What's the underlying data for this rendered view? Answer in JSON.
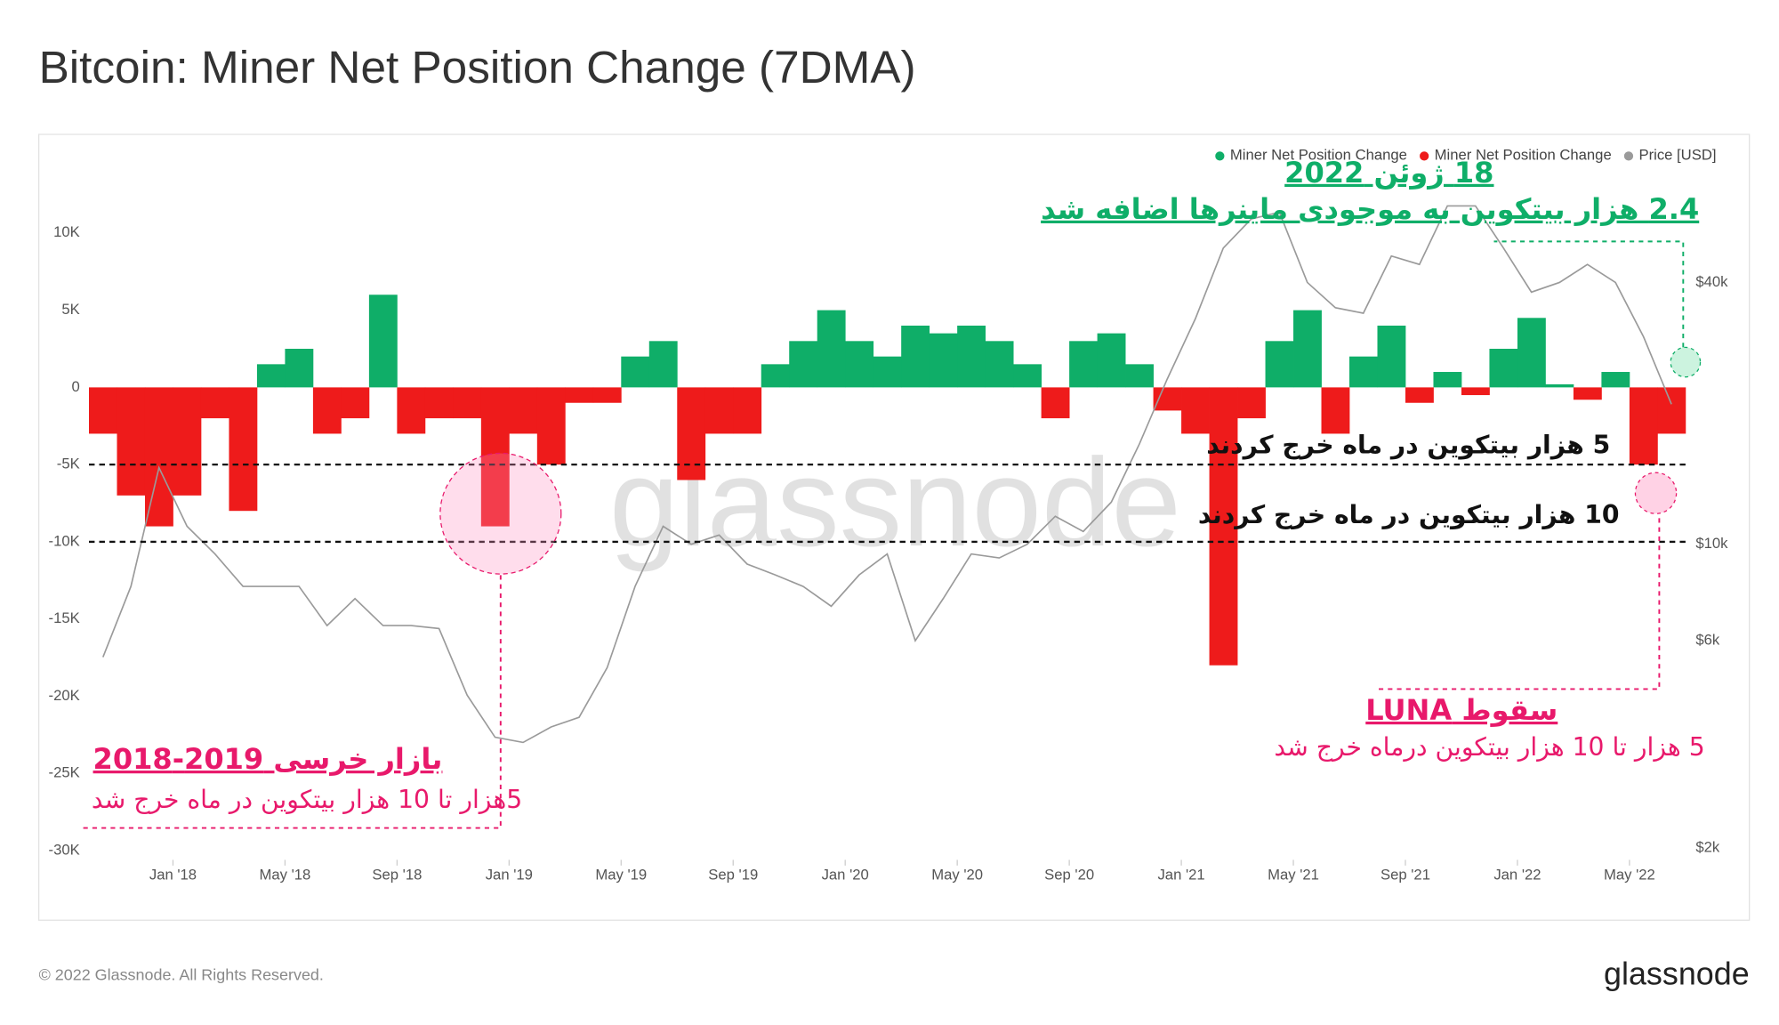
{
  "chart_data": {
    "type": "bar",
    "title": "Bitcoin: Miner Net Position Change (7DMA)",
    "x": [
      "2017-10",
      "2017-11",
      "2017-12",
      "2018-01",
      "2018-02",
      "2018-03",
      "2018-04",
      "2018-05",
      "2018-06",
      "2018-07",
      "2018-08",
      "2018-09",
      "2018-10",
      "2018-11",
      "2018-12",
      "2019-01",
      "2019-02",
      "2019-03",
      "2019-04",
      "2019-05",
      "2019-06",
      "2019-07",
      "2019-08",
      "2019-09",
      "2019-10",
      "2019-11",
      "2019-12",
      "2020-01",
      "2020-02",
      "2020-03",
      "2020-04",
      "2020-05",
      "2020-06",
      "2020-07",
      "2020-08",
      "2020-09",
      "2020-10",
      "2020-11",
      "2020-12",
      "2021-01",
      "2021-02",
      "2021-03",
      "2021-04",
      "2021-05",
      "2021-06",
      "2021-07",
      "2021-08",
      "2021-09",
      "2021-10",
      "2021-11",
      "2021-12",
      "2022-01",
      "2022-02",
      "2022-03",
      "2022-04",
      "2022-05",
      "2022-06"
    ],
    "series": [
      {
        "name": "Miner Net Position Change",
        "color": "#0fae68",
        "values": [
          null,
          null,
          null,
          null,
          null,
          null,
          1500,
          2500,
          null,
          null,
          6000,
          null,
          null,
          null,
          null,
          null,
          null,
          null,
          null,
          2000,
          3000,
          null,
          null,
          null,
          1500,
          3000,
          5000,
          3000,
          2000,
          4000,
          3500,
          4000,
          3000,
          1500,
          null,
          3000,
          3500,
          1500,
          null,
          null,
          null,
          null,
          3000,
          5000,
          null,
          2000,
          4000,
          null,
          1000,
          null,
          2500,
          4500,
          200,
          null,
          1000,
          null,
          null
        ]
      },
      {
        "name": "Miner Net Position Change",
        "color": "#ee1b1b",
        "values": [
          -3000,
          -7000,
          -9000,
          -7000,
          -2000,
          -8000,
          null,
          null,
          -3000,
          -2000,
          null,
          -3000,
          -2000,
          -2000,
          -9000,
          -3000,
          -5000,
          -1000,
          -1000,
          null,
          null,
          -6000,
          -3000,
          -3000,
          null,
          null,
          null,
          null,
          null,
          null,
          null,
          null,
          null,
          null,
          -2000,
          null,
          null,
          null,
          -1500,
          -3000,
          -18000,
          -2000,
          null,
          null,
          -3000,
          null,
          null,
          -1000,
          null,
          -500,
          null,
          null,
          null,
          -800,
          null,
          -5000,
          -3000
        ]
      },
      {
        "name": "Price [USD]",
        "color": "#9a9a9a",
        "axis": "y2",
        "values": [
          5500,
          8000,
          15000,
          11000,
          9500,
          8000,
          8000,
          8000,
          6500,
          7500,
          6500,
          6500,
          6400,
          4500,
          3600,
          3500,
          3800,
          4000,
          5200,
          8000,
          11000,
          10000,
          10500,
          9000,
          8500,
          8000,
          7200,
          8500,
          9500,
          6000,
          7500,
          9500,
          9300,
          10000,
          11600,
          10700,
          12500,
          17000,
          24000,
          33000,
          48000,
          56000,
          58000,
          40000,
          35000,
          34000,
          46000,
          44000,
          60000,
          60000,
          48000,
          38000,
          40000,
          44000,
          40000,
          30000,
          21000
        ]
      }
    ],
    "xlim": [
      "2017-10",
      "2022-07"
    ],
    "xticks": [
      {
        "value": "2018-01",
        "label": "Jan '18"
      },
      {
        "value": "2018-05",
        "label": "May '18"
      },
      {
        "value": "2018-09",
        "label": "Sep '18"
      },
      {
        "value": "2019-01",
        "label": "Jan '19"
      },
      {
        "value": "2019-05",
        "label": "May '19"
      },
      {
        "value": "2019-09",
        "label": "Sep '19"
      },
      {
        "value": "2020-01",
        "label": "Jan '20"
      },
      {
        "value": "2020-05",
        "label": "May '20"
      },
      {
        "value": "2020-09",
        "label": "Sep '20"
      },
      {
        "value": "2021-01",
        "label": "Jan '21"
      },
      {
        "value": "2021-05",
        "label": "May '21"
      },
      {
        "value": "2021-09",
        "label": "Sep '21"
      },
      {
        "value": "2022-01",
        "label": "Jan '22"
      },
      {
        "value": "2022-05",
        "label": "May '22"
      }
    ],
    "ylim": [
      -30600,
      15500
    ],
    "yticks": [
      {
        "value": 10000,
        "label": "10K"
      },
      {
        "value": 5000,
        "label": "5K"
      },
      0,
      {
        "value": -5000,
        "label": "-5K"
      },
      {
        "value": -10000,
        "label": "-10K"
      },
      {
        "value": -15000,
        "label": "-15K"
      },
      {
        "value": -20000,
        "label": "-20K"
      },
      {
        "value": -25000,
        "label": "-25K"
      },
      {
        "value": -30000,
        "label": "-30K"
      }
    ],
    "y2lim": [
      1880,
      81500
    ],
    "y2ticks": [
      {
        "value": 40000,
        "label": "$40k"
      },
      {
        "value": 10000,
        "label": "$10k"
      },
      {
        "value": 6000,
        "label": "$6k"
      },
      {
        "value": 2000,
        "label": "$2k"
      }
    ],
    "y2log": true,
    "grid": false,
    "legend": "top-right",
    "reference_lines": [
      -5000,
      -10000
    ],
    "watermark": "glassnode",
    "annotations": [
      "18 ژوئن 2022",
      "2.4 هزار بیتکوین به موجودی ماینرها اضافه شد",
      "5 هزار بیتکوین در ماه خرج کردند",
      "10 هزار بیتکوین در ماه خرج کردند",
      "بازار خرسی 2019-2018",
      "5هزار تا 10 هزار بیتکوین در ماه خرج شد",
      "سقوط LUNA",
      "5 هزار تا 10 هزار بیتکوین درماه خرج شد"
    ]
  },
  "footer": {
    "copyright": "© 2022 Glassnode. All Rights Reserved.",
    "logo": "glassnode"
  }
}
